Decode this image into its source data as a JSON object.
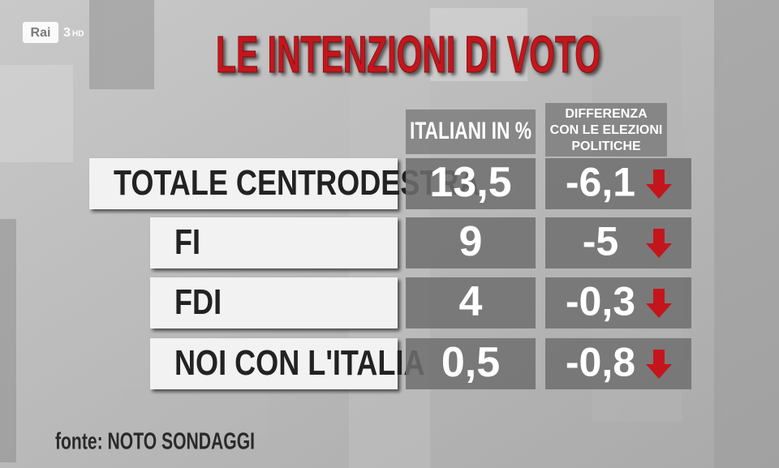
{
  "logo": {
    "name": "Rai",
    "channel": "3",
    "suffix": "HD"
  },
  "title": "LE INTENZIONI DI VOTO",
  "table": {
    "headers": {
      "value": "ITALIANI IN %",
      "difference": [
        "DIFFERENZA",
        "CON LE ELEZIONI",
        "POLITICHE"
      ]
    },
    "rows": [
      [
        "TOTALE CENTRODESTRA",
        "13,5",
        "-6,1"
      ],
      [
        "FI",
        "9",
        "-5"
      ],
      [
        "FDI",
        "4",
        "-0,3"
      ],
      [
        "NOI CON L'ITALIA",
        "0,5",
        "-0,8"
      ]
    ]
  },
  "source": "fonte: NOTO SONDAGGI"
}
